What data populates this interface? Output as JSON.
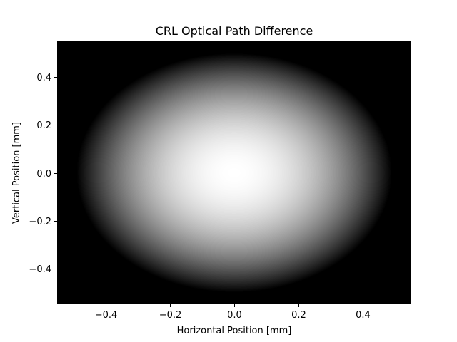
{
  "chart_data": {
    "type": "heatmap",
    "title": "CRL Optical Path Difference",
    "xlabel": "Horizontal Position [mm]",
    "ylabel": "Vertical Position [mm]",
    "xlim": [
      -0.55,
      0.55
    ],
    "ylim": [
      -0.55,
      0.55
    ],
    "xticks": [
      -0.4,
      -0.2,
      0.0,
      0.2,
      0.4
    ],
    "xtick_labels": [
      "−0.4",
      "−0.2",
      "0.0",
      "0.2",
      "0.4"
    ],
    "yticks": [
      -0.4,
      -0.2,
      0.0,
      0.2,
      0.4
    ],
    "ytick_labels": [
      "−0.4",
      "−0.2",
      "0.0",
      "0.2",
      "0.4"
    ],
    "colormap": "gray",
    "background_color": "#000000",
    "peak_color": "#ffffff",
    "field": {
      "shape": "elliptical paraboloid",
      "center": [
        0.0,
        0.0
      ],
      "semi_axis_x": 0.49,
      "semi_axis_y": 0.5,
      "peak_value": 1.0,
      "edge_value": 0.0
    },
    "grid": false,
    "legend": "none"
  }
}
